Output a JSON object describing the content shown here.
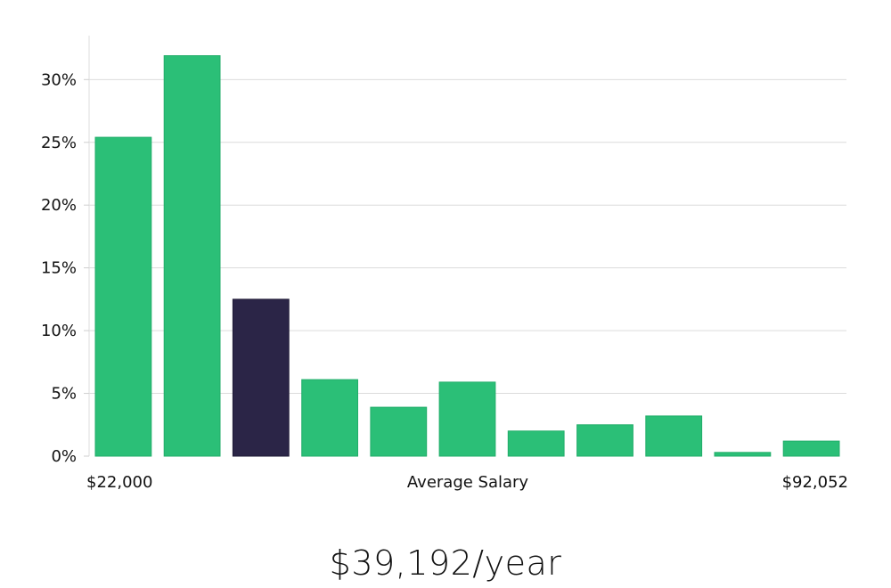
{
  "chart_data": {
    "type": "bar",
    "xlabel": "Average Salary",
    "x_min_label": "$22,000",
    "x_max_label": "$92,052",
    "y_ticks": [
      "0%",
      "5%",
      "10%",
      "15%",
      "20%",
      "25%",
      "30%"
    ],
    "ylim": [
      0,
      33.5
    ],
    "grid": true,
    "values": [
      25.4,
      31.9,
      12.5,
      6.1,
      3.9,
      5.9,
      2.0,
      2.5,
      3.2,
      0.3,
      1.2
    ],
    "highlight_index": 2,
    "colors": {
      "bar": "#2bbf77",
      "bar_highlight": "#2b2547",
      "grid": "#dcdcdc"
    }
  },
  "summary": {
    "salary_text": "$39,192/year"
  }
}
